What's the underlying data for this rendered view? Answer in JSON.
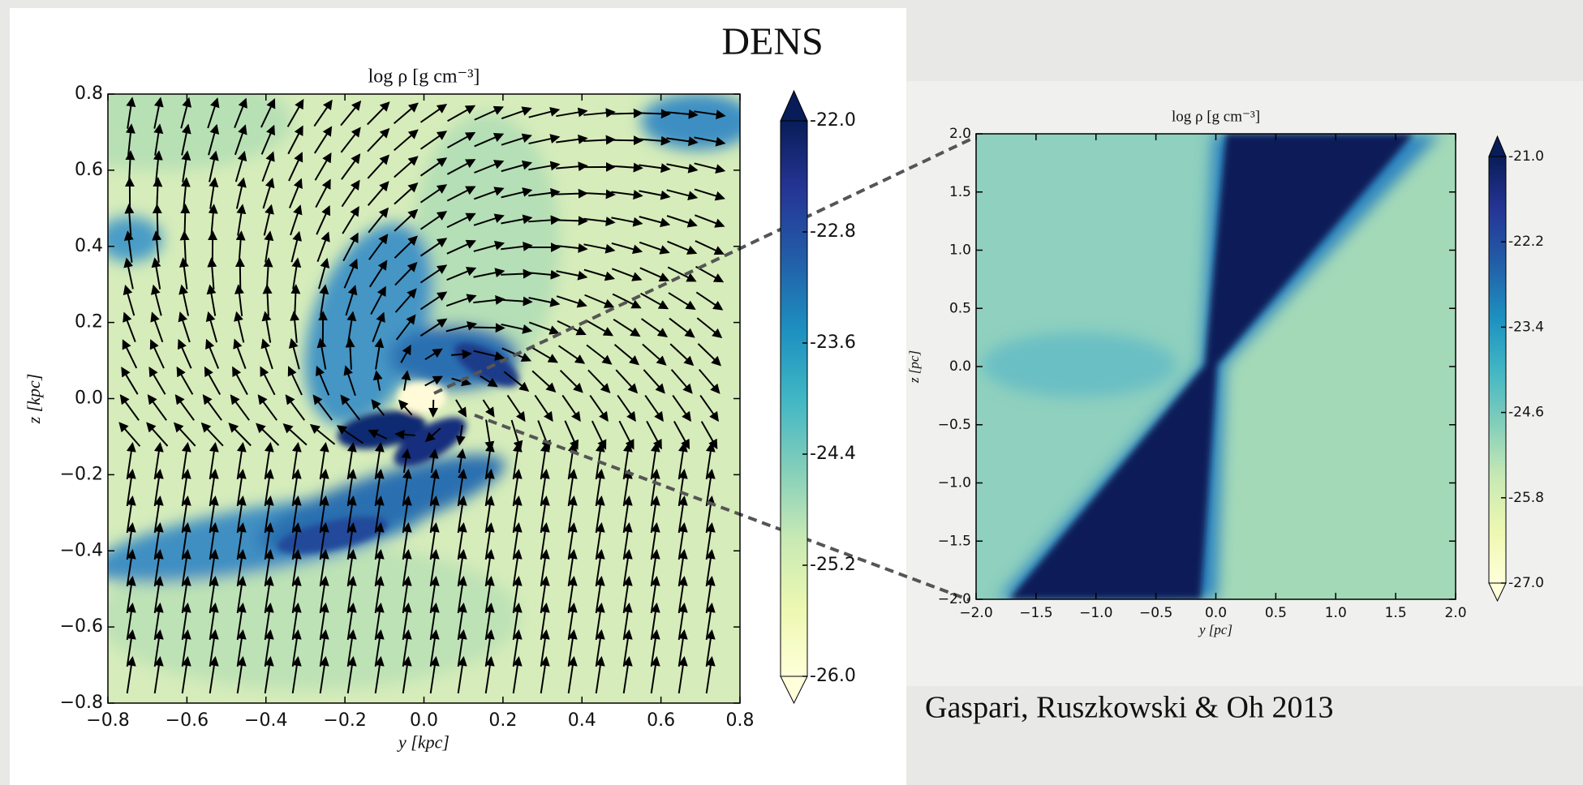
{
  "slide": {
    "heading": "DENS",
    "citation": "Gaspari, Ruszkowski & Oh 2013"
  },
  "left_plot": {
    "title": "log ρ  [g cm⁻³]",
    "xlabel": "y  [kpc]",
    "ylabel": "z  [kpc]",
    "xlim": [
      -0.8,
      0.8
    ],
    "ylim": [
      -0.8,
      0.8
    ],
    "xticks": [
      {
        "value": -0.8,
        "label": "−0.8"
      },
      {
        "value": -0.6,
        "label": "−0.6"
      },
      {
        "value": -0.4,
        "label": "−0.4"
      },
      {
        "value": -0.2,
        "label": "−0.2"
      },
      {
        "value": 0,
        "label": "0.0"
      },
      0.2,
      0.4,
      0.6,
      0.8
    ],
    "yticks": [
      {
        "value": -0.8,
        "label": "−0.8"
      },
      {
        "value": -0.6,
        "label": "−0.6"
      },
      {
        "value": -0.4,
        "label": "−0.4"
      },
      {
        "value": -0.2,
        "label": "−0.2"
      },
      {
        "value": 0,
        "label": "0.0"
      },
      0.2,
      0.4,
      0.6,
      0.8
    ],
    "colorbar": {
      "lim": [
        -26.0,
        -22.0
      ],
      "ticks": [
        {
          "value": -22.0,
          "label": "-22.0"
        },
        {
          "value": -22.8,
          "label": "-22.8"
        },
        {
          "value": -23.6,
          "label": "-23.6"
        },
        {
          "value": -24.4,
          "label": "-24.4"
        },
        {
          "value": -25.2,
          "label": "-25.2"
        },
        {
          "value": -26.0,
          "label": "-26.0"
        }
      ]
    }
  },
  "right_plot": {
    "title": "log ρ  [g cm⁻³]",
    "xlabel": "y  [pc]",
    "ylabel": "z  [pc]",
    "xlim": [
      -2.0,
      2.0
    ],
    "ylim": [
      -2.0,
      2.0
    ],
    "xticks": [
      {
        "value": -2.0,
        "label": "−2.0"
      },
      {
        "value": -1.5,
        "label": "−1.5"
      },
      {
        "value": -1.0,
        "label": "−1.0"
      },
      {
        "value": -0.5,
        "label": "−0.5"
      },
      {
        "value": 0,
        "label": "0.0"
      },
      0.5,
      {
        "value": 1.0,
        "label": "1.0"
      },
      1.5,
      {
        "value": 2.0,
        "label": "2.0"
      }
    ],
    "yticks": [
      {
        "value": -2.0,
        "label": "−2.0"
      },
      {
        "value": -1.5,
        "label": "−1.5"
      },
      {
        "value": -1.0,
        "label": "−1.0"
      },
      {
        "value": -0.5,
        "label": "−0.5"
      },
      {
        "value": 0,
        "label": "0.0"
      },
      0.5,
      {
        "value": 1.0,
        "label": "1.0"
      },
      1.5,
      {
        "value": 2.0,
        "label": "2.0"
      }
    ],
    "colorbar": {
      "lim": [
        -27.0,
        -21.0
      ],
      "ticks": [
        {
          "value": -21.0,
          "label": "-21.0"
        },
        {
          "value": -22.2,
          "label": "-22.2"
        },
        {
          "value": -23.4,
          "label": "-23.4"
        },
        {
          "value": -24.6,
          "label": "-24.6"
        },
        {
          "value": -25.8,
          "label": "-25.8"
        },
        {
          "value": -27.0,
          "label": "-27.0"
        }
      ]
    }
  }
}
